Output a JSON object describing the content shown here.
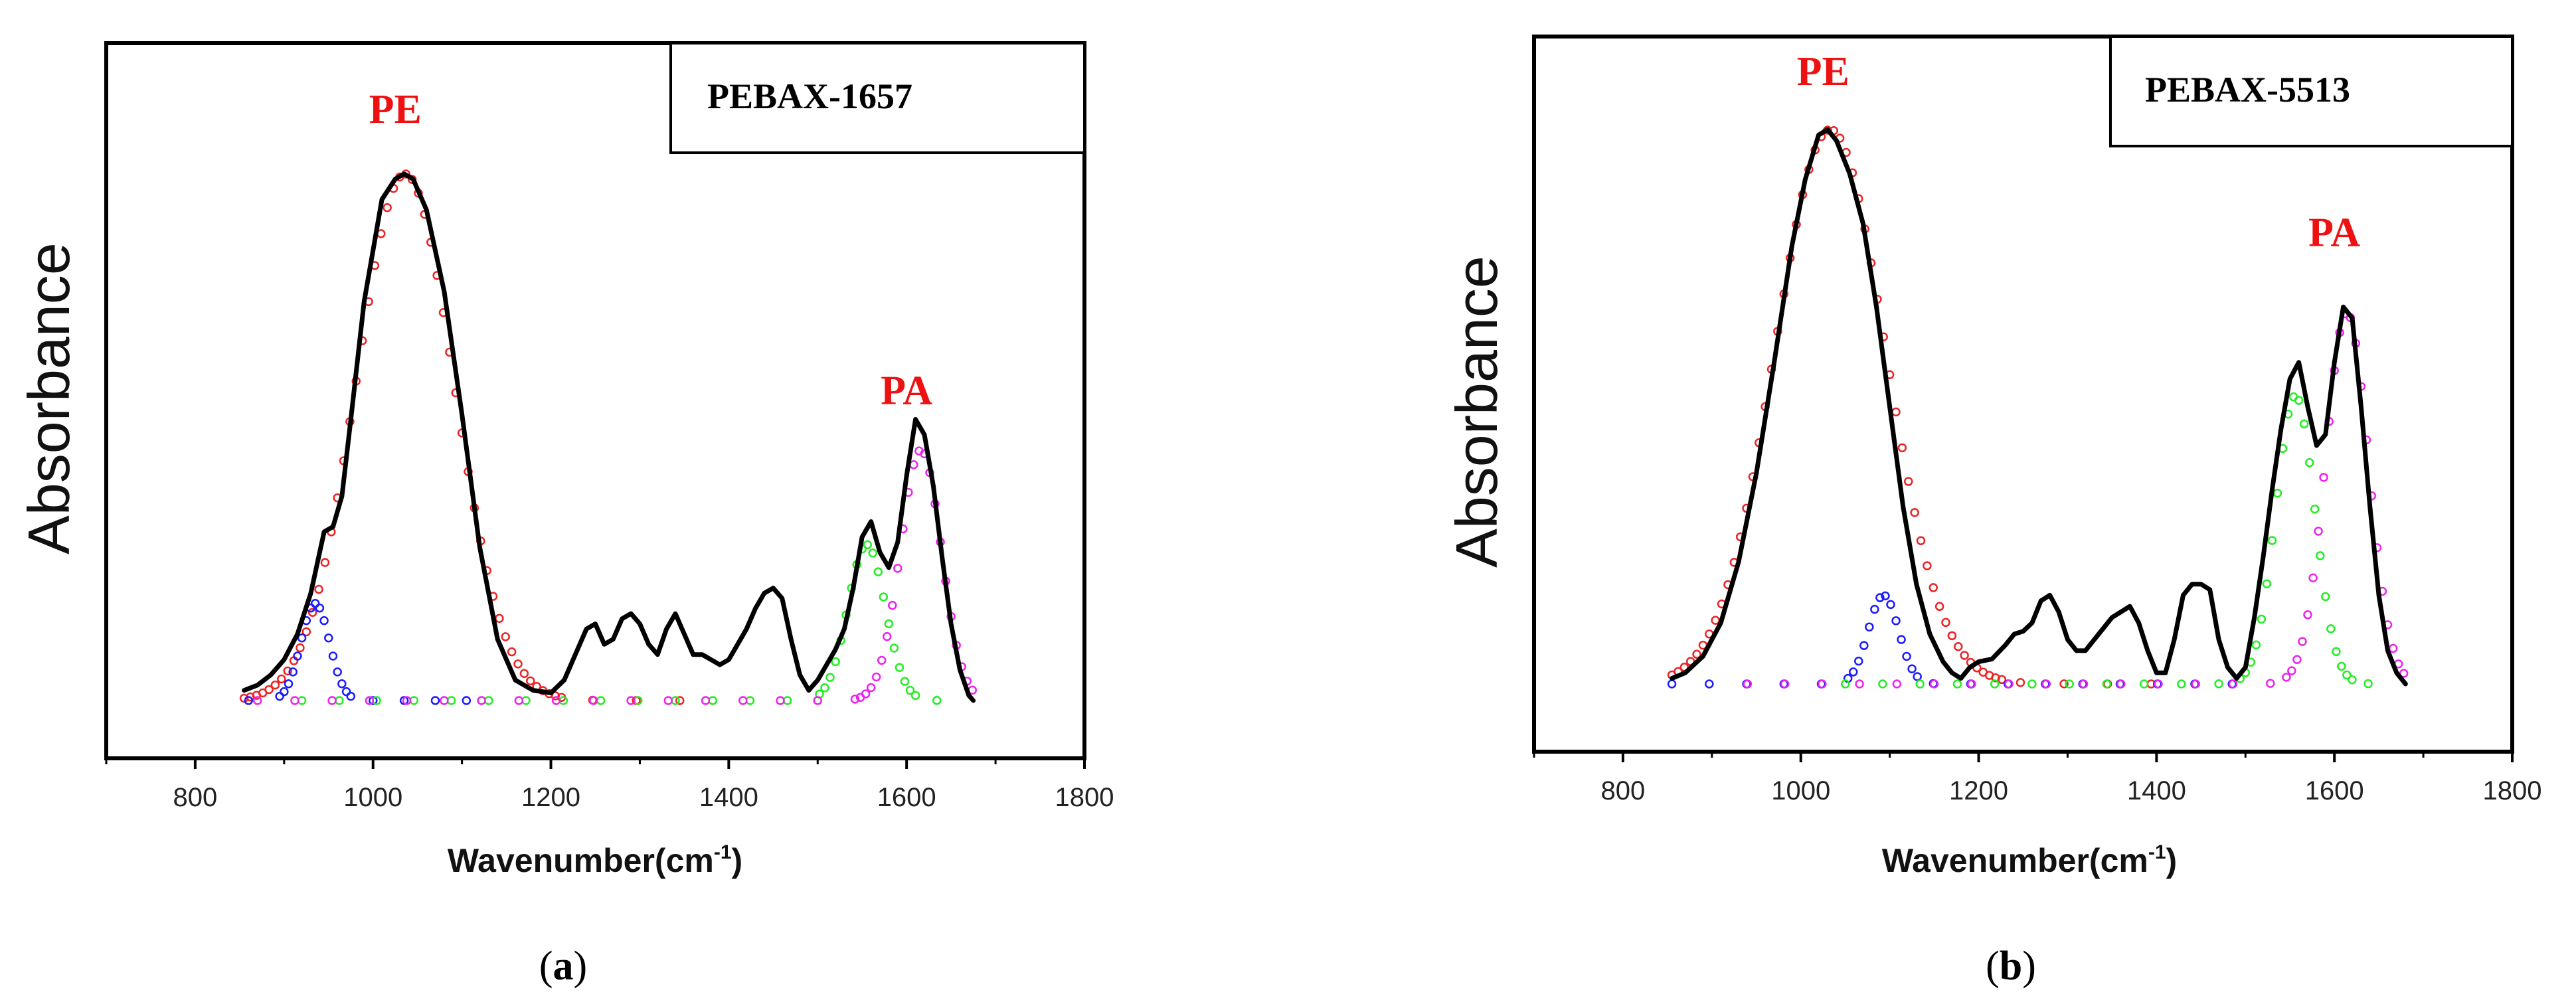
{
  "chart_data": [
    {
      "type": "line",
      "panel_label": "(a)",
      "panel_letter": "a",
      "legend": "PEBAX-1657",
      "xlabel": "Wavenumber(cm",
      "xlabel_sup": "-1",
      "xlabel_close": ")",
      "ylabel": "Absorbance",
      "xlim": [
        700,
        1800
      ],
      "ylim": [
        0,
        1
      ],
      "x_ticks": [
        800,
        1000,
        1200,
        1400,
        1600,
        1800
      ],
      "annotations": [
        {
          "text": "PE",
          "x": 1025,
          "y": 1.13,
          "color": "#ee1111"
        },
        {
          "text": "PA",
          "x": 1600,
          "y": 0.58,
          "color": "#ee1111"
        }
      ],
      "series": [
        {
          "name": "Experimental spectrum",
          "color": "#000000",
          "style": "line",
          "x": [
            855,
            870,
            885,
            900,
            915,
            930,
            945,
            955,
            965,
            975,
            990,
            1010,
            1025,
            1035,
            1045,
            1060,
            1080,
            1100,
            1120,
            1140,
            1160,
            1180,
            1200,
            1215,
            1230,
            1240,
            1250,
            1260,
            1270,
            1280,
            1290,
            1300,
            1310,
            1320,
            1330,
            1340,
            1350,
            1360,
            1370,
            1380,
            1390,
            1400,
            1410,
            1420,
            1430,
            1440,
            1450,
            1460,
            1470,
            1480,
            1490,
            1500,
            1510,
            1520,
            1530,
            1540,
            1550,
            1560,
            1570,
            1580,
            1590,
            1600,
            1610,
            1620,
            1630,
            1640,
            1650,
            1660,
            1670,
            1675
          ],
          "y": [
            0.02,
            0.03,
            0.05,
            0.08,
            0.13,
            0.21,
            0.33,
            0.34,
            0.4,
            0.55,
            0.78,
            0.98,
            1.02,
            1.03,
            1.02,
            0.96,
            0.8,
            0.56,
            0.3,
            0.12,
            0.04,
            0.02,
            0.015,
            0.04,
            0.1,
            0.14,
            0.15,
            0.11,
            0.12,
            0.16,
            0.17,
            0.15,
            0.11,
            0.09,
            0.14,
            0.17,
            0.13,
            0.09,
            0.09,
            0.08,
            0.07,
            0.08,
            0.11,
            0.14,
            0.18,
            0.21,
            0.22,
            0.2,
            0.12,
            0.05,
            0.02,
            0.04,
            0.07,
            0.1,
            0.14,
            0.22,
            0.32,
            0.35,
            0.29,
            0.26,
            0.31,
            0.44,
            0.55,
            0.52,
            0.42,
            0.28,
            0.15,
            0.06,
            0.01,
            0.0
          ]
        },
        {
          "name": "PE fit (red)",
          "color": "#ee2222",
          "style": "markers",
          "center": 1036,
          "amplitude": 1.03,
          "sigma": 55,
          "x_range": [
            855,
            1350
          ],
          "step": 7
        },
        {
          "name": "Blue fit",
          "color": "#1a1aff",
          "style": "markers",
          "center": 935,
          "amplitude": 0.19,
          "sigma": 16,
          "x_range": [
            860,
            1110
          ],
          "step": 5
        },
        {
          "name": "Green fit",
          "color": "#22ee22",
          "style": "markers",
          "center": 1555,
          "amplitude": 0.305,
          "sigma": 21,
          "x_range": [
            920,
            1650
          ],
          "step": 6
        },
        {
          "name": "PA fit (magenta)",
          "color": "#ee22ee",
          "style": "markers",
          "center": 1616,
          "amplitude": 0.49,
          "sigma": 23,
          "x_range": [
            870,
            1675
          ],
          "step": 6
        }
      ]
    },
    {
      "type": "line",
      "panel_label": "(b)",
      "panel_letter": "b",
      "legend": "PEBAX-5513",
      "xlabel": "Wavenumber(cm",
      "xlabel_sup": "-1",
      "xlabel_close": ")",
      "ylabel": "Absorbance",
      "xlim": [
        700,
        1800
      ],
      "ylim": [
        0,
        1
      ],
      "x_ticks": [
        800,
        1000,
        1200,
        1400,
        1600,
        1800
      ],
      "annotations": [
        {
          "text": "PE",
          "x": 1025,
          "y": 1.08,
          "color": "#ee1111"
        },
        {
          "text": "PA",
          "x": 1600,
          "y": 0.79,
          "color": "#ee1111"
        }
      ],
      "series": [
        {
          "name": "Experimental spectrum",
          "color": "#000000",
          "style": "line",
          "x": [
            855,
            870,
            890,
            910,
            930,
            950,
            970,
            990,
            1005,
            1020,
            1030,
            1040,
            1055,
            1070,
            1085,
            1100,
            1115,
            1130,
            1145,
            1160,
            1170,
            1180,
            1190,
            1200,
            1215,
            1230,
            1240,
            1250,
            1260,
            1270,
            1280,
            1290,
            1300,
            1310,
            1320,
            1330,
            1340,
            1350,
            1360,
            1370,
            1380,
            1390,
            1400,
            1410,
            1420,
            1430,
            1440,
            1450,
            1460,
            1470,
            1480,
            1490,
            1500,
            1510,
            1520,
            1530,
            1540,
            1550,
            1560,
            1570,
            1580,
            1590,
            1600,
            1610,
            1620,
            1630,
            1640,
            1650,
            1660,
            1670,
            1680
          ],
          "y": [
            0.01,
            0.02,
            0.05,
            0.11,
            0.22,
            0.38,
            0.58,
            0.79,
            0.91,
            0.99,
            1.0,
            0.98,
            0.92,
            0.83,
            0.68,
            0.5,
            0.32,
            0.18,
            0.09,
            0.04,
            0.02,
            0.01,
            0.03,
            0.04,
            0.045,
            0.07,
            0.09,
            0.095,
            0.11,
            0.15,
            0.16,
            0.13,
            0.08,
            0.06,
            0.06,
            0.08,
            0.1,
            0.12,
            0.13,
            0.14,
            0.11,
            0.06,
            0.02,
            0.02,
            0.08,
            0.16,
            0.18,
            0.18,
            0.17,
            0.08,
            0.03,
            0.01,
            0.03,
            0.12,
            0.23,
            0.35,
            0.46,
            0.55,
            0.58,
            0.5,
            0.43,
            0.45,
            0.58,
            0.68,
            0.66,
            0.5,
            0.32,
            0.16,
            0.06,
            0.02,
            0.0
          ]
        },
        {
          "name": "PE fit (red)",
          "color": "#ee2222",
          "style": "markers",
          "center": 1033,
          "amplitude": 1.0,
          "sigma": 62,
          "x_range": [
            855,
            1420
          ],
          "step": 7
        },
        {
          "name": "Blue fit",
          "color": "#1a1aff",
          "style": "markers",
          "center": 1093,
          "amplitude": 0.16,
          "sigma": 17,
          "x_range": [
            855,
            1500
          ],
          "step": 6
        },
        {
          "name": "Green fit",
          "color": "#22ee22",
          "style": "markers",
          "center": 1556,
          "amplitude": 0.52,
          "sigma": 22,
          "x_range": [
            1050,
            1650
          ],
          "step": 6
        },
        {
          "name": "PA fit (magenta)",
          "color": "#ee22ee",
          "style": "markers",
          "center": 1614,
          "amplitude": 0.67,
          "sigma": 24,
          "x_range": [
            940,
            1680
          ],
          "step": 6
        }
      ]
    }
  ]
}
